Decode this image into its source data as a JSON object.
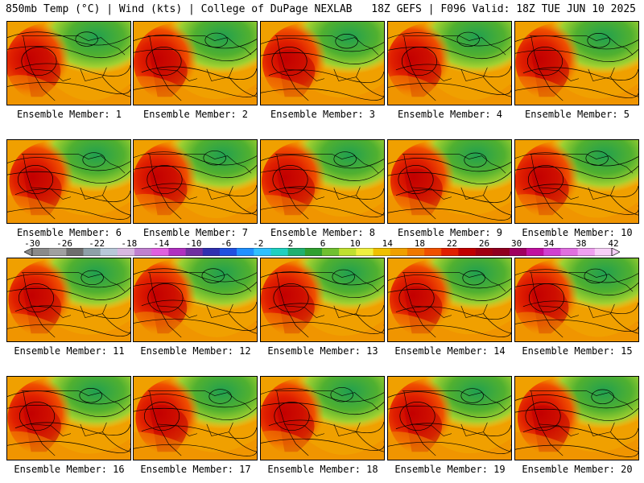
{
  "header": {
    "left": "850mb Temp (°C) | Wind (kts) | College of DuPage NEXLAB",
    "right": "18Z GEFS | F096 Valid: 18Z TUE JUN 10 2025"
  },
  "colorbar": {
    "labels": [
      "-30",
      "-26",
      "-22",
      "-18",
      "-14",
      "-10",
      "-6",
      "-2",
      "2",
      "6",
      "10",
      "14",
      "18",
      "22",
      "26",
      "30",
      "34",
      "38",
      "42"
    ],
    "colors": [
      "#8a8a8a",
      "#a0a0a0",
      "#6e6e6e",
      "#8ea0a8",
      "#b8c8d8",
      "#d8b8e0",
      "#c080d0",
      "#e060e0",
      "#b030c0",
      "#7030a0",
      "#3030b0",
      "#2050e0",
      "#2090ff",
      "#30c0ff",
      "#20d0c0",
      "#20b070",
      "#30a030",
      "#70c030",
      "#c0e030",
      "#f0f040",
      "#f0c000",
      "#f0a000",
      "#f07800",
      "#f05000",
      "#e02000",
      "#c00000",
      "#a00010",
      "#900020",
      "#a00060",
      "#c010a0",
      "#d040d0",
      "#e070e0",
      "#f0a0f0",
      "#f8d0f8"
    ]
  },
  "panels": [
    {
      "label": "Ensemble Member: 1"
    },
    {
      "label": "Ensemble Member: 2"
    },
    {
      "label": "Ensemble Member: 3"
    },
    {
      "label": "Ensemble Member: 4"
    },
    {
      "label": "Ensemble Member: 5"
    },
    {
      "label": "Ensemble Member: 6"
    },
    {
      "label": "Ensemble Member: 7"
    },
    {
      "label": "Ensemble Member: 8"
    },
    {
      "label": "Ensemble Member: 9"
    },
    {
      "label": "Ensemble Member: 10"
    },
    {
      "label": "Ensemble Member: 11"
    },
    {
      "label": "Ensemble Member: 12"
    },
    {
      "label": "Ensemble Member: 13"
    },
    {
      "label": "Ensemble Member: 14"
    },
    {
      "label": "Ensemble Member: 15"
    },
    {
      "label": "Ensemble Member: 16"
    },
    {
      "label": "Ensemble Member: 17"
    },
    {
      "label": "Ensemble Member: 18"
    },
    {
      "label": "Ensemble Member: 19"
    },
    {
      "label": "Ensemble Member: 20"
    }
  ]
}
